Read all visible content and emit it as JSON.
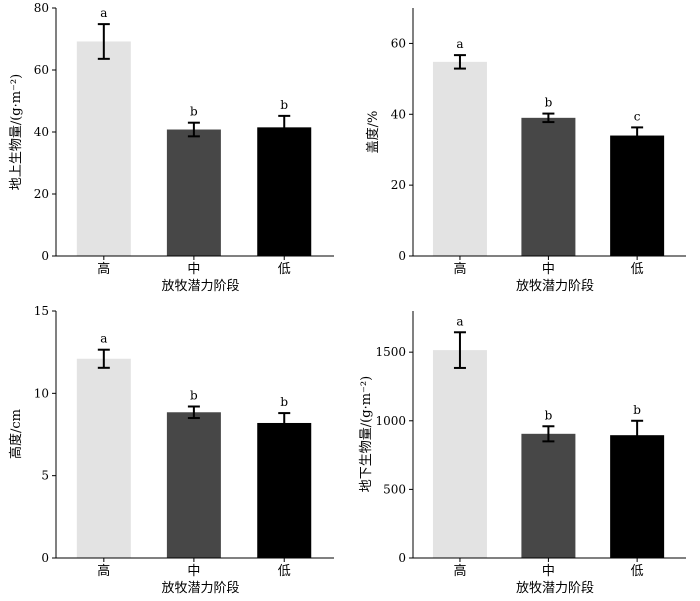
{
  "chart_data": [
    {
      "type": "bar",
      "categories": [
        "高",
        "中",
        "低"
      ],
      "values": [
        69.2,
        40.8,
        41.5
      ],
      "errors": [
        5.6,
        2.2,
        3.7
      ],
      "letters": [
        "a",
        "b",
        "b"
      ],
      "colors": [
        "#e3e3e3",
        "#474747",
        "#000000"
      ],
      "xlabel": "放牧潜力阶段",
      "ylabel": "地上生物量/(g·m⁻²)",
      "ylim": [
        0,
        80
      ],
      "yticks": [
        0,
        20,
        40,
        60,
        80
      ],
      "grid": false
    },
    {
      "type": "bar",
      "categories": [
        "高",
        "中",
        "低"
      ],
      "values": [
        54.8,
        39.0,
        34.0
      ],
      "errors": [
        1.9,
        1.2,
        2.3
      ],
      "letters": [
        "a",
        "b",
        "c"
      ],
      "colors": [
        "#e3e3e3",
        "#474747",
        "#000000"
      ],
      "xlabel": "放牧潜力阶段",
      "ylabel": "盖度/%",
      "ylim": [
        0,
        70
      ],
      "yticks": [
        0,
        20,
        40,
        60
      ],
      "grid": false
    },
    {
      "type": "bar",
      "categories": [
        "高",
        "中",
        "低"
      ],
      "values": [
        12.1,
        8.85,
        8.2
      ],
      "errors": [
        0.55,
        0.35,
        0.6
      ],
      "letters": [
        "a",
        "b",
        "b"
      ],
      "colors": [
        "#e3e3e3",
        "#474747",
        "#000000"
      ],
      "xlabel": "放牧潜力阶段",
      "ylabel": "高度/cm",
      "ylim": [
        0,
        15
      ],
      "yticks": [
        0,
        5,
        10,
        15
      ],
      "grid": false
    },
    {
      "type": "bar",
      "categories": [
        "高",
        "中",
        "低"
      ],
      "values": [
        1515,
        905,
        895
      ],
      "errors": [
        130,
        55,
        105
      ],
      "letters": [
        "a",
        "b",
        "b"
      ],
      "colors": [
        "#e3e3e3",
        "#474747",
        "#000000"
      ],
      "xlabel": "放牧潜力阶段",
      "ylabel": "地下生物量/(g·m⁻²)",
      "ylim": [
        0,
        1800
      ],
      "yticks": [
        0,
        500,
        1000,
        1500
      ],
      "grid": false
    }
  ]
}
